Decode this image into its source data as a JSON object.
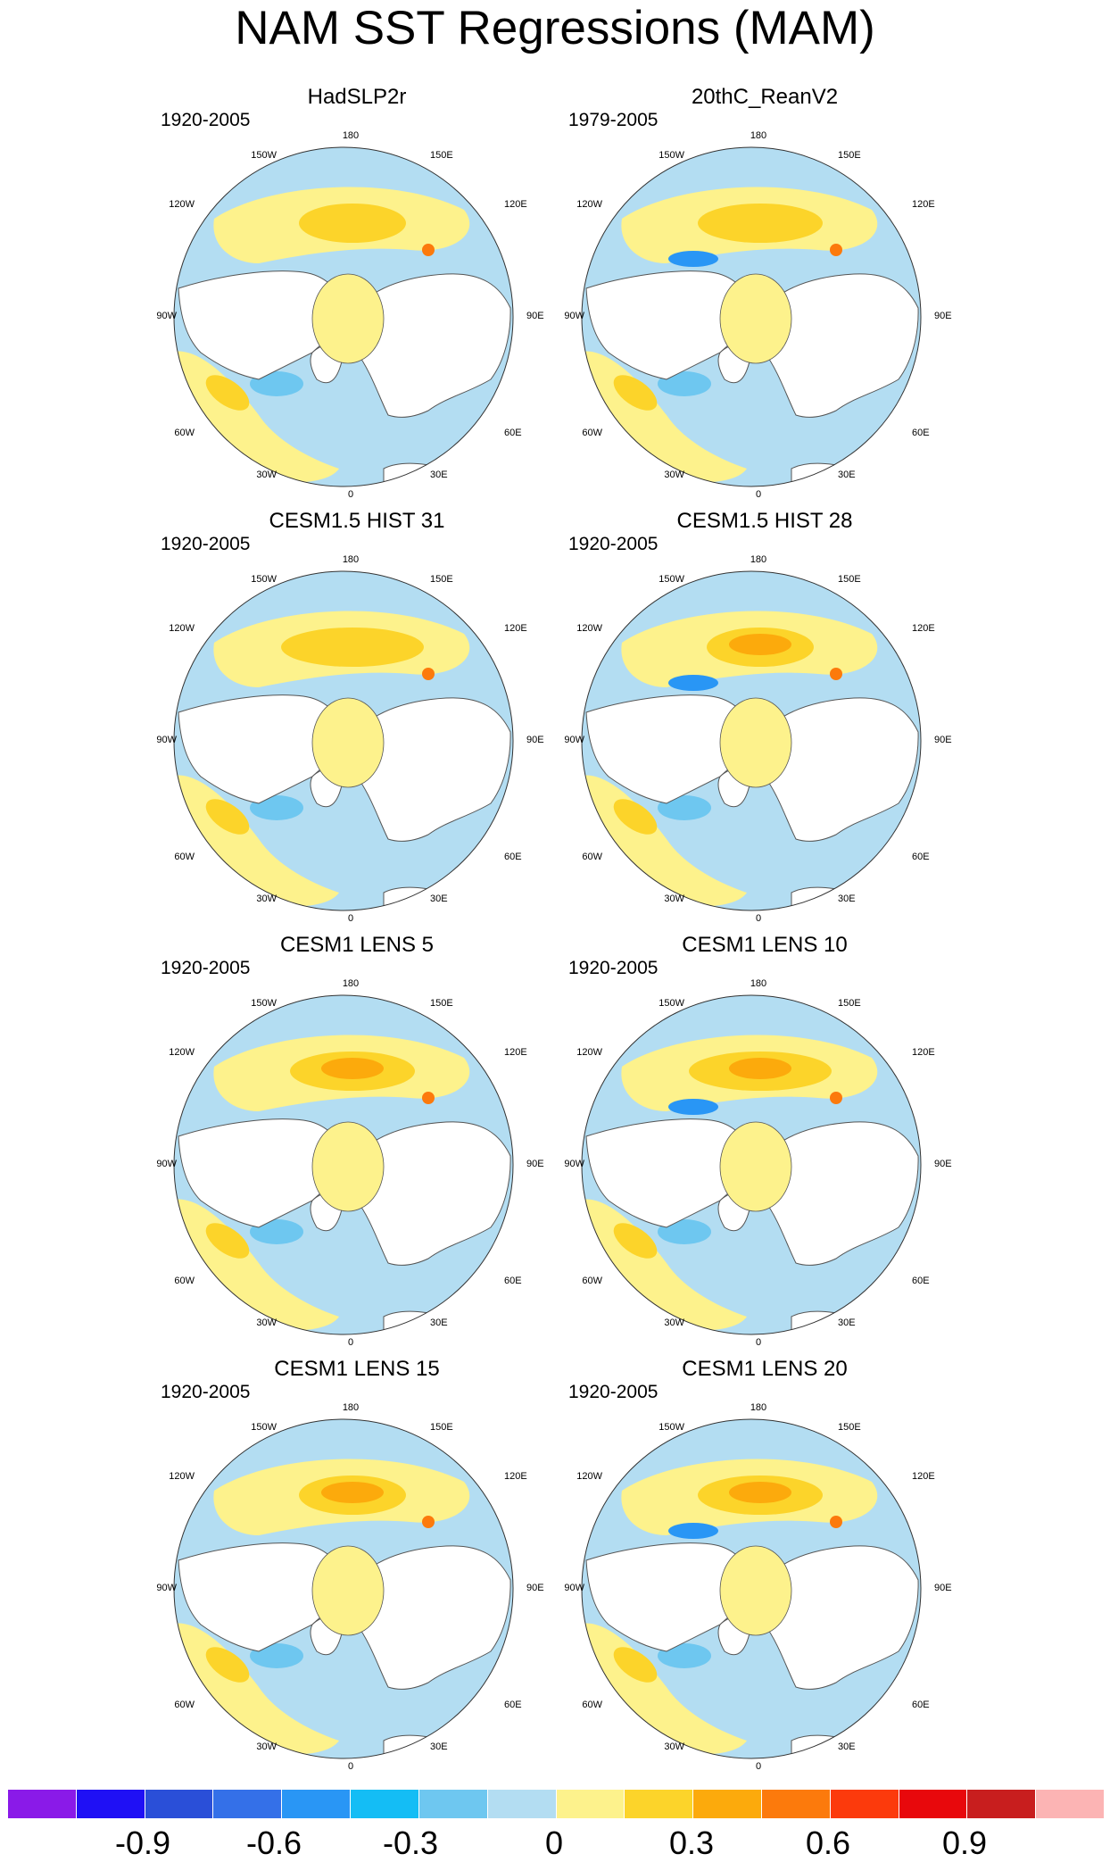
{
  "title": "NAM SST Regressions (MAM)",
  "lon_labels": {
    "top": "180",
    "p150w": "150W",
    "p150e": "150E",
    "p120w": "120W",
    "p120e": "120E",
    "p90w": "90W",
    "p90e": "90E",
    "p60w": "60W",
    "p60e": "60E",
    "p30w": "30W",
    "p30e": "30E",
    "bottom": "0"
  },
  "panels": [
    {
      "title": "HadSLP2r",
      "period": "1920-2005"
    },
    {
      "title": "20thC_ReanV2",
      "period": "1979-2005"
    },
    {
      "title": "CESM1.5 HIST 31",
      "period": "1920-2005"
    },
    {
      "title": "CESM1.5 HIST 28",
      "period": "1920-2005"
    },
    {
      "title": "CESM1 LENS 5",
      "period": "1920-2005"
    },
    {
      "title": "CESM1 LENS 10",
      "period": "1920-2005"
    },
    {
      "title": "CESM1 LENS 15",
      "period": "1920-2005"
    },
    {
      "title": "CESM1 LENS 20",
      "period": "1920-2005"
    }
  ],
  "colorbar": {
    "colors": [
      "#8a1ae8",
      "#1f10f5",
      "#2a4fd8",
      "#3470e8",
      "#2996f5",
      "#14bdf5",
      "#6ec7f0",
      "#b3ddf2",
      "#fdf28c",
      "#fcd42a",
      "#fcaa0c",
      "#fc7a0c",
      "#fc3a0c",
      "#e8080c",
      "#c81e1e",
      "#fcb4b4"
    ],
    "ticks": [
      "-0.9",
      "-0.6",
      "-0.3",
      "0",
      "0.3",
      "0.6",
      "0.9"
    ]
  }
}
